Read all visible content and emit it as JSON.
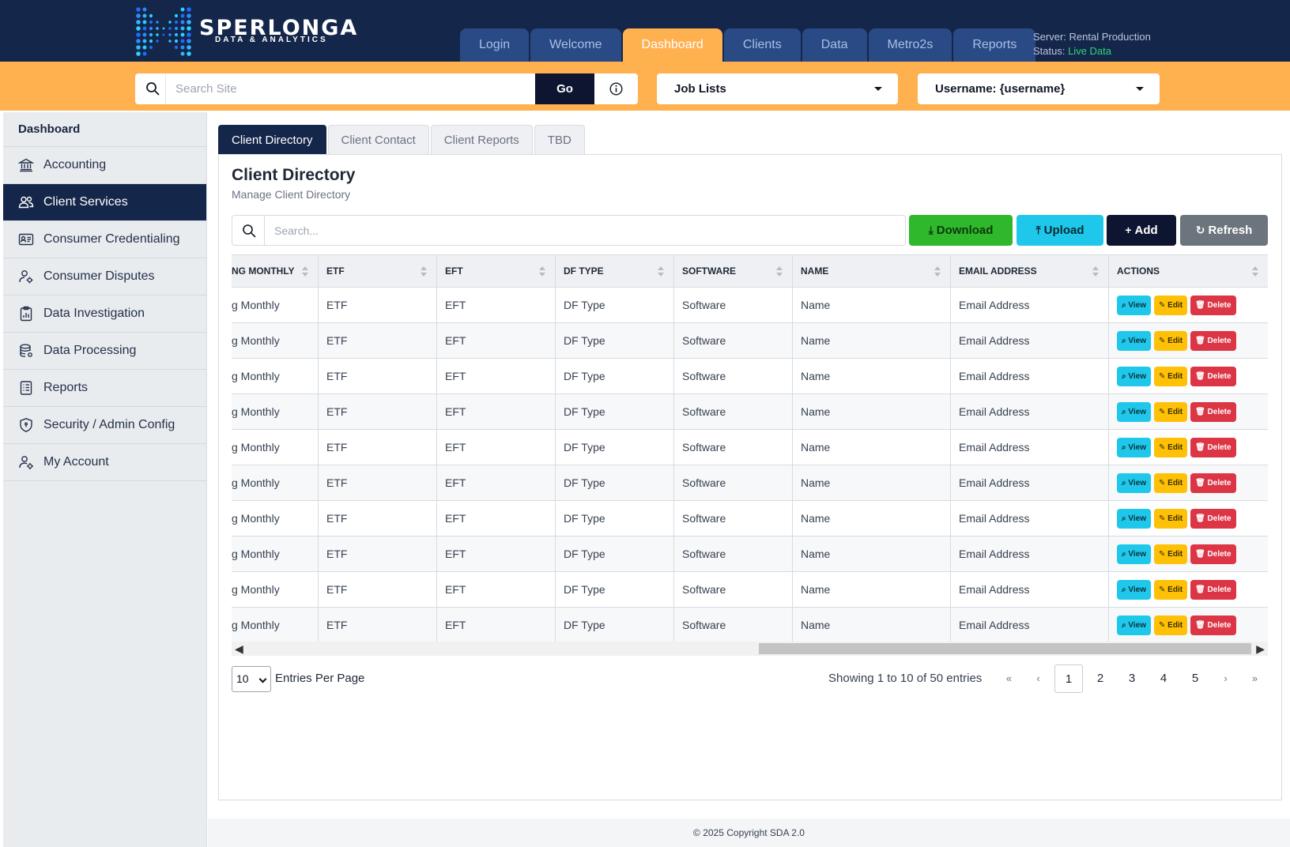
{
  "brand": {
    "name": "SPERLONGA",
    "subtitle": "DATA & ANALYTICS"
  },
  "nav": {
    "tabs": [
      "Login",
      "Welcome",
      "Dashboard",
      "Clients",
      "Data",
      "Metro2s",
      "Reports"
    ],
    "active": "Dashboard"
  },
  "server": {
    "label": "Server: Rental Production",
    "status_prefix": "Status: ",
    "status_value": "Live Data"
  },
  "site_search": {
    "placeholder": "Search Site",
    "go_label": "Go",
    "info_icon": "info-icon"
  },
  "job_select": {
    "value": "Job Lists"
  },
  "user_select": {
    "value": "Username: {username}"
  },
  "sidebar": {
    "title": "Dashboard",
    "items": [
      {
        "label": "Accounting",
        "icon": "bank-icon"
      },
      {
        "label": "Client Services",
        "icon": "people-icon",
        "active": true
      },
      {
        "label": "Consumer Credentialing",
        "icon": "id-card-icon"
      },
      {
        "label": "Consumer Disputes",
        "icon": "person-gear-icon"
      },
      {
        "label": "Data Investigation",
        "icon": "clipboard-chart-icon"
      },
      {
        "label": "Data Processing",
        "icon": "database-icon"
      },
      {
        "label": "Reports",
        "icon": "report-list-icon"
      },
      {
        "label": "Security / Admin Config",
        "icon": "shield-icon"
      },
      {
        "label": "My Account",
        "icon": "user-gear-icon"
      }
    ]
  },
  "content_tabs": {
    "tabs": [
      "Client Directory",
      "Client Contact",
      "Client Reports",
      "TBD"
    ],
    "active": "Client Directory"
  },
  "panel": {
    "title": "Client Directory",
    "subtitle": "Manage Client Directory"
  },
  "table_search": {
    "placeholder": "Search..."
  },
  "actions": {
    "download": "Download",
    "upload": "Upload",
    "add": "Add",
    "refresh": "Refresh"
  },
  "table": {
    "columns": [
      "NG MONTHLY",
      "ETF",
      "EFT",
      "DF TYPE",
      "SOFTWARE",
      "NAME",
      "EMAIL ADDRESS",
      "ACTIONS"
    ],
    "rows": [
      [
        "g Monthly",
        "ETF",
        "EFT",
        "DF Type",
        "Software",
        "Name",
        "Email Address"
      ],
      [
        "g Monthly",
        "ETF",
        "EFT",
        "DF Type",
        "Software",
        "Name",
        "Email Address"
      ],
      [
        "g Monthly",
        "ETF",
        "EFT",
        "DF Type",
        "Software",
        "Name",
        "Email Address"
      ],
      [
        "g Monthly",
        "ETF",
        "EFT",
        "DF Type",
        "Software",
        "Name",
        "Email Address"
      ],
      [
        "g Monthly",
        "ETF",
        "EFT",
        "DF Type",
        "Software",
        "Name",
        "Email Address"
      ],
      [
        "g Monthly",
        "ETF",
        "EFT",
        "DF Type",
        "Software",
        "Name",
        "Email Address"
      ],
      [
        "g Monthly",
        "ETF",
        "EFT",
        "DF Type",
        "Software",
        "Name",
        "Email Address"
      ],
      [
        "g Monthly",
        "ETF",
        "EFT",
        "DF Type",
        "Software",
        "Name",
        "Email Address"
      ],
      [
        "g Monthly",
        "ETF",
        "EFT",
        "DF Type",
        "Software",
        "Name",
        "Email Address"
      ],
      [
        "g Monthly",
        "ETF",
        "EFT",
        "DF Type",
        "Software",
        "Name",
        "Email Address"
      ]
    ],
    "row_actions": {
      "view": "View",
      "edit": "Edit",
      "delete": "Delete"
    }
  },
  "pagination": {
    "per_page": "10",
    "per_page_label": "Entries Per Page",
    "showing": "Showing 1 to 10 of 50 entries",
    "first": "«",
    "prev": "‹",
    "pages": [
      "1",
      "2",
      "3",
      "4",
      "5"
    ],
    "current": "1",
    "next": "›",
    "last": "»"
  },
  "footer": {
    "text": "© 2025 Copyright SDA 2.0"
  },
  "colors": {
    "header_bg": "#14264a",
    "accent_orange": "#ffb04f",
    "live_green": "#2fd47a",
    "download_green": "#2fb82b",
    "upload_cyan": "#1fc8ea",
    "edit_yellow": "#ffc107",
    "delete_red": "#dc3545"
  }
}
